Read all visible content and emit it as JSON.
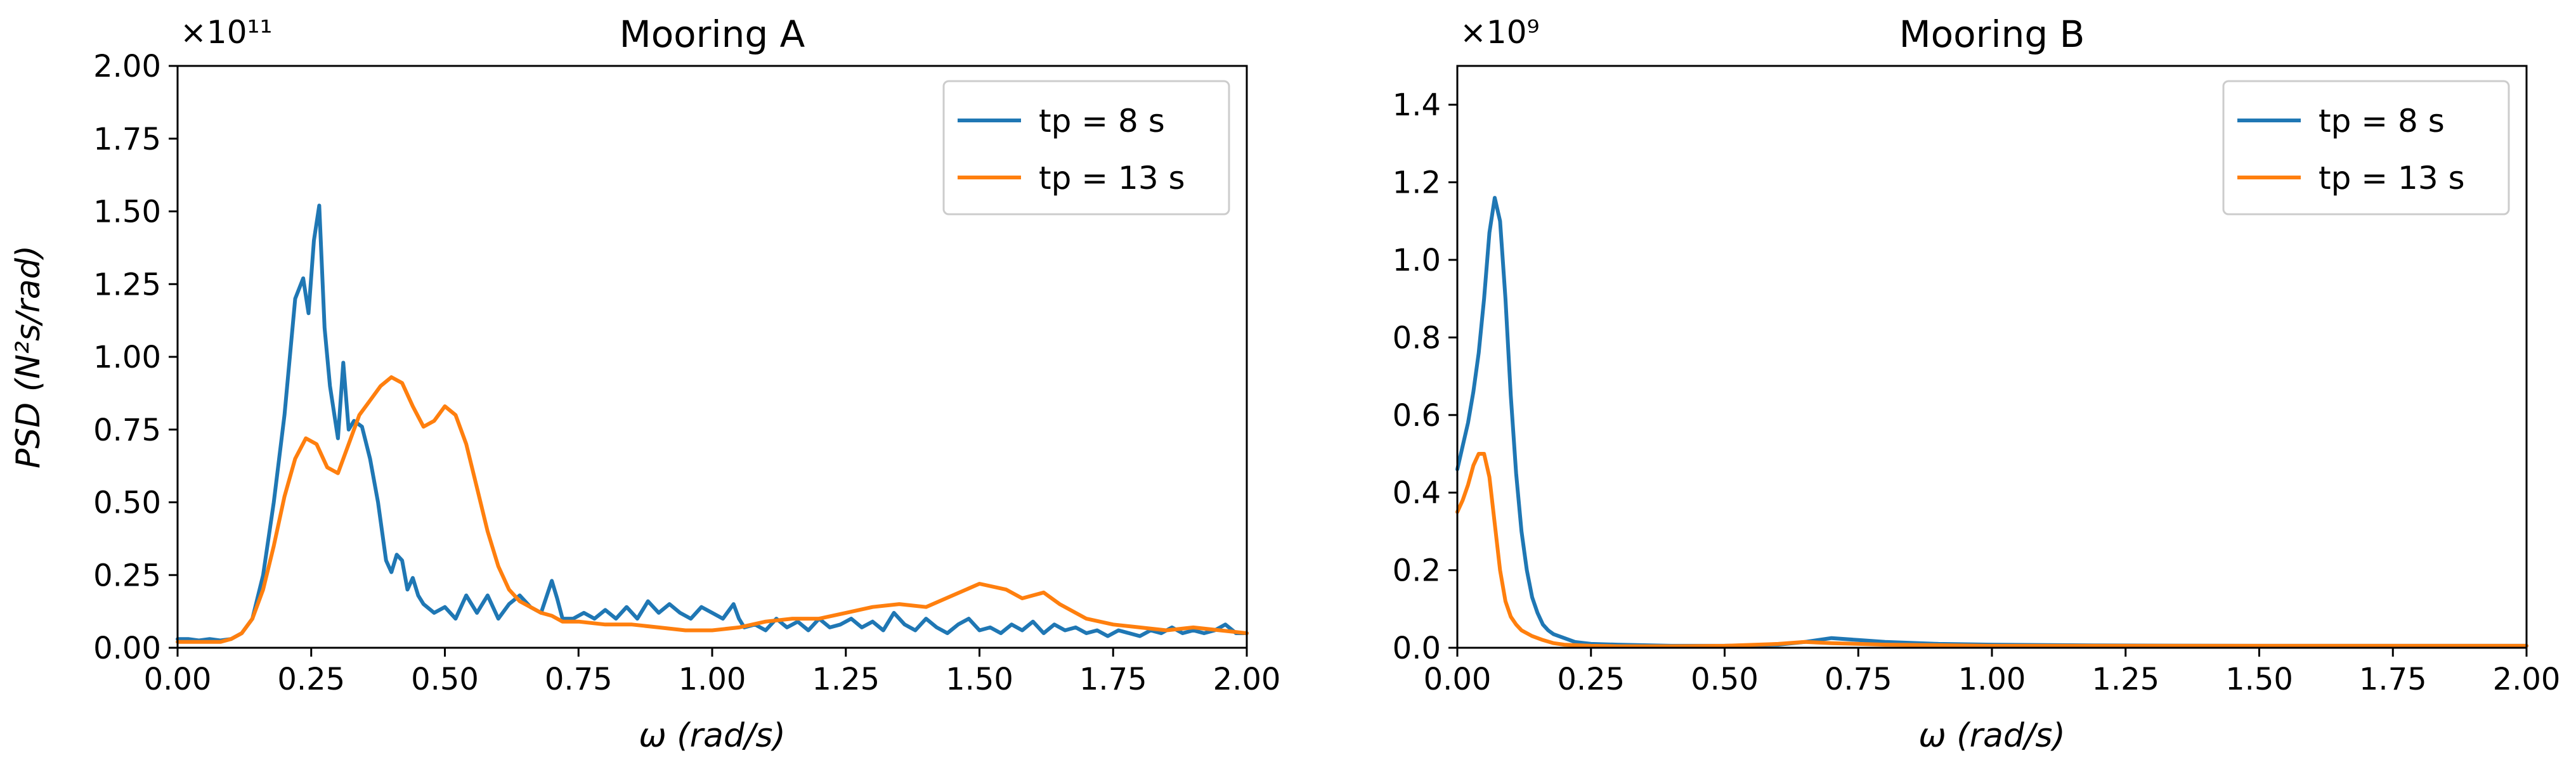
{
  "colors": {
    "tp8": "#1f77b4",
    "tp13": "#ff7f0e",
    "axis": "#000000",
    "legend_border": "#cccccc"
  },
  "chart_data": [
    {
      "type": "line",
      "title": "Mooring A",
      "xlabel": "ω (rad/s)",
      "ylabel": "PSD (N²s/rad)",
      "y_multiplier": "×10¹¹",
      "xlim": [
        0,
        2
      ],
      "ylim": [
        0,
        2
      ],
      "xticks": [
        "0.00",
        "0.25",
        "0.50",
        "0.75",
        "1.00",
        "1.25",
        "1.50",
        "1.75",
        "2.00"
      ],
      "yticks": [
        "0.00",
        "0.25",
        "0.50",
        "0.75",
        "1.00",
        "1.25",
        "1.50",
        "1.75",
        "2.00"
      ],
      "grid": false,
      "legend": "top-right",
      "series": [
        {
          "name": "tp = 8 s",
          "x": [
            0,
            0.02,
            0.04,
            0.06,
            0.08,
            0.1,
            0.12,
            0.14,
            0.16,
            0.18,
            0.2,
            0.22,
            0.235,
            0.245,
            0.255,
            0.265,
            0.275,
            0.285,
            0.3,
            0.31,
            0.32,
            0.33,
            0.345,
            0.36,
            0.375,
            0.39,
            0.4,
            0.41,
            0.42,
            0.43,
            0.44,
            0.45,
            0.46,
            0.48,
            0.5,
            0.52,
            0.54,
            0.56,
            0.58,
            0.6,
            0.62,
            0.64,
            0.66,
            0.68,
            0.7,
            0.71,
            0.72,
            0.74,
            0.76,
            0.78,
            0.8,
            0.82,
            0.84,
            0.86,
            0.88,
            0.9,
            0.92,
            0.94,
            0.96,
            0.98,
            1.0,
            1.02,
            1.04,
            1.05,
            1.06,
            1.08,
            1.1,
            1.12,
            1.14,
            1.16,
            1.18,
            1.2,
            1.22,
            1.24,
            1.26,
            1.28,
            1.3,
            1.32,
            1.34,
            1.36,
            1.38,
            1.4,
            1.42,
            1.44,
            1.46,
            1.48,
            1.5,
            1.52,
            1.54,
            1.56,
            1.58,
            1.6,
            1.62,
            1.64,
            1.66,
            1.68,
            1.7,
            1.72,
            1.74,
            1.76,
            1.78,
            1.8,
            1.82,
            1.84,
            1.86,
            1.88,
            1.9,
            1.92,
            1.94,
            1.96,
            1.98,
            2.0
          ],
          "y": [
            0.03,
            0.03,
            0.025,
            0.03,
            0.025,
            0.03,
            0.05,
            0.1,
            0.25,
            0.5,
            0.8,
            1.2,
            1.27,
            1.15,
            1.4,
            1.52,
            1.1,
            0.9,
            0.72,
            0.98,
            0.75,
            0.78,
            0.76,
            0.65,
            0.5,
            0.3,
            0.26,
            0.32,
            0.3,
            0.2,
            0.24,
            0.18,
            0.15,
            0.12,
            0.14,
            0.1,
            0.18,
            0.12,
            0.18,
            0.1,
            0.15,
            0.18,
            0.14,
            0.12,
            0.23,
            0.17,
            0.1,
            0.1,
            0.12,
            0.1,
            0.13,
            0.1,
            0.14,
            0.1,
            0.16,
            0.12,
            0.15,
            0.12,
            0.1,
            0.14,
            0.12,
            0.1,
            0.15,
            0.1,
            0.07,
            0.08,
            0.06,
            0.1,
            0.07,
            0.09,
            0.06,
            0.1,
            0.07,
            0.08,
            0.1,
            0.07,
            0.09,
            0.06,
            0.12,
            0.08,
            0.06,
            0.1,
            0.07,
            0.05,
            0.08,
            0.1,
            0.06,
            0.07,
            0.05,
            0.08,
            0.06,
            0.09,
            0.05,
            0.08,
            0.06,
            0.07,
            0.05,
            0.06,
            0.04,
            0.06,
            0.05,
            0.04,
            0.06,
            0.05,
            0.07,
            0.05,
            0.06,
            0.05,
            0.06,
            0.08,
            0.05,
            0.05
          ]
        },
        {
          "name": "tp = 13 s",
          "x": [
            0,
            0.04,
            0.08,
            0.1,
            0.12,
            0.14,
            0.16,
            0.18,
            0.2,
            0.22,
            0.24,
            0.26,
            0.28,
            0.3,
            0.32,
            0.34,
            0.36,
            0.38,
            0.4,
            0.42,
            0.44,
            0.46,
            0.48,
            0.5,
            0.52,
            0.54,
            0.56,
            0.58,
            0.6,
            0.62,
            0.64,
            0.66,
            0.68,
            0.7,
            0.72,
            0.75,
            0.8,
            0.85,
            0.9,
            0.95,
            1.0,
            1.05,
            1.1,
            1.15,
            1.2,
            1.25,
            1.3,
            1.35,
            1.4,
            1.45,
            1.5,
            1.55,
            1.58,
            1.6,
            1.62,
            1.65,
            1.7,
            1.75,
            1.8,
            1.85,
            1.9,
            1.95,
            2.0
          ],
          "y": [
            0.02,
            0.02,
            0.02,
            0.03,
            0.05,
            0.1,
            0.2,
            0.35,
            0.52,
            0.65,
            0.72,
            0.7,
            0.62,
            0.6,
            0.7,
            0.8,
            0.85,
            0.9,
            0.93,
            0.91,
            0.83,
            0.76,
            0.78,
            0.83,
            0.8,
            0.7,
            0.55,
            0.4,
            0.28,
            0.2,
            0.16,
            0.14,
            0.12,
            0.11,
            0.09,
            0.09,
            0.08,
            0.08,
            0.07,
            0.06,
            0.06,
            0.07,
            0.09,
            0.1,
            0.1,
            0.12,
            0.14,
            0.15,
            0.14,
            0.18,
            0.22,
            0.2,
            0.17,
            0.18,
            0.19,
            0.15,
            0.1,
            0.08,
            0.07,
            0.06,
            0.07,
            0.06,
            0.05
          ]
        }
      ]
    },
    {
      "type": "line",
      "title": "Mooring B",
      "xlabel": "ω (rad/s)",
      "ylabel": "",
      "y_multiplier": "×10⁹",
      "xlim": [
        0,
        2
      ],
      "ylim": [
        0,
        1.5
      ],
      "xticks": [
        "0.00",
        "0.25",
        "0.50",
        "0.75",
        "1.00",
        "1.25",
        "1.50",
        "1.75",
        "2.00"
      ],
      "yticks": [
        "0.0",
        "0.2",
        "0.4",
        "0.6",
        "0.8",
        "1.0",
        "1.2",
        "1.4"
      ],
      "grid": false,
      "legend": "top-right",
      "series": [
        {
          "name": "tp = 8 s",
          "x": [
            0,
            0.01,
            0.02,
            0.03,
            0.04,
            0.05,
            0.06,
            0.07,
            0.08,
            0.09,
            0.1,
            0.11,
            0.12,
            0.13,
            0.14,
            0.15,
            0.16,
            0.17,
            0.18,
            0.2,
            0.22,
            0.25,
            0.3,
            0.4,
            0.5,
            0.6,
            0.65,
            0.7,
            0.75,
            0.8,
            0.9,
            1.0,
            1.2,
            1.5,
            1.8,
            2.0
          ],
          "y": [
            0.46,
            0.52,
            0.58,
            0.66,
            0.76,
            0.9,
            1.07,
            1.16,
            1.1,
            0.9,
            0.65,
            0.45,
            0.3,
            0.2,
            0.13,
            0.09,
            0.06,
            0.045,
            0.035,
            0.025,
            0.015,
            0.01,
            0.008,
            0.005,
            0.005,
            0.008,
            0.015,
            0.025,
            0.02,
            0.015,
            0.01,
            0.008,
            0.006,
            0.005,
            0.005,
            0.005
          ]
        },
        {
          "name": "tp = 13 s",
          "x": [
            0,
            0.01,
            0.02,
            0.03,
            0.04,
            0.05,
            0.06,
            0.07,
            0.08,
            0.09,
            0.1,
            0.11,
            0.12,
            0.14,
            0.16,
            0.18,
            0.2,
            0.25,
            0.3,
            0.4,
            0.5,
            0.6,
            0.65,
            0.7,
            0.75,
            0.8,
            1.0,
            1.5,
            2.0
          ],
          "y": [
            0.35,
            0.38,
            0.42,
            0.47,
            0.5,
            0.5,
            0.44,
            0.32,
            0.2,
            0.12,
            0.08,
            0.06,
            0.045,
            0.03,
            0.02,
            0.012,
            0.008,
            0.005,
            0.004,
            0.004,
            0.005,
            0.01,
            0.015,
            0.012,
            0.01,
            0.008,
            0.005,
            0.005,
            0.005
          ]
        }
      ]
    }
  ]
}
